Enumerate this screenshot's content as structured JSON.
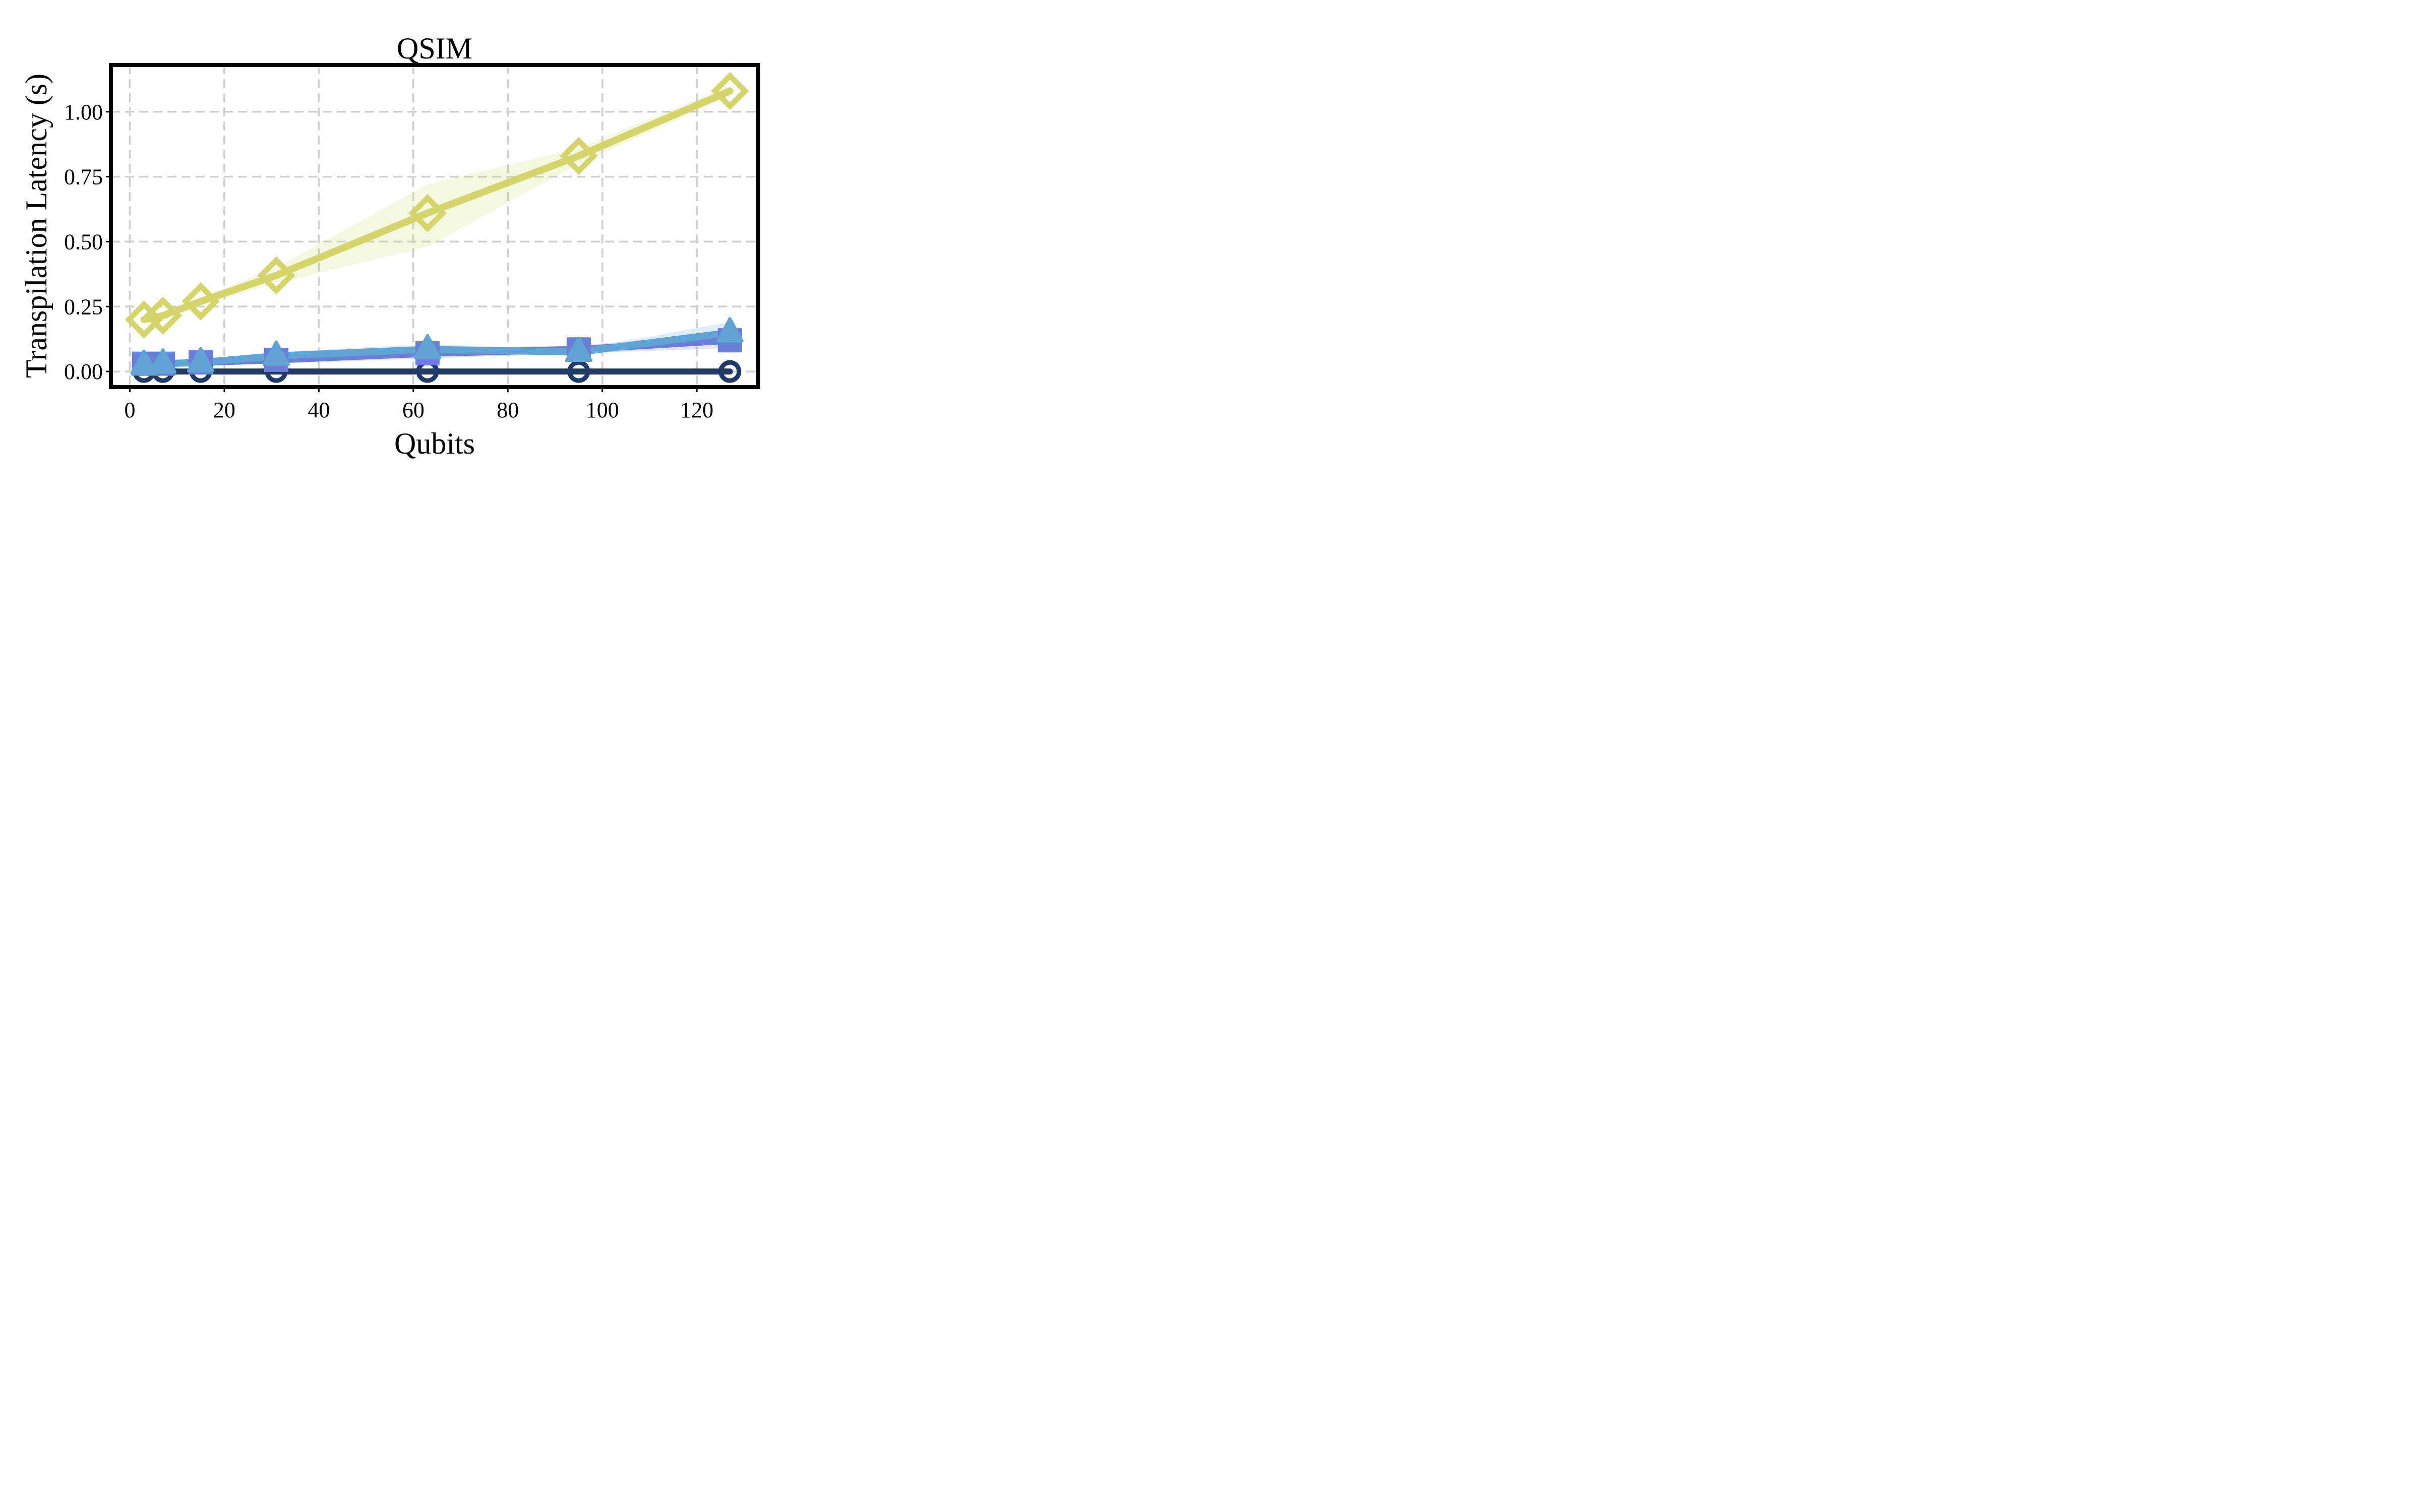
{
  "chart_data": {
    "type": "line",
    "title": "QSIM",
    "xlabel": "Qubits",
    "ylabel": "Transpilation Latency (s)",
    "xlim": [
      -4,
      133
    ],
    "ylim": [
      -0.06,
      1.18
    ],
    "xticks": [
      0,
      20,
      40,
      60,
      80,
      100,
      120
    ],
    "xtick_labels": [
      "0",
      "20",
      "40",
      "60",
      "80",
      "100",
      "120"
    ],
    "yticks": [
      0.0,
      0.25,
      0.5,
      0.75,
      1.0
    ],
    "ytick_labels": [
      "0.00",
      "0.25",
      "0.50",
      "0.75",
      "1.00"
    ],
    "grid": true,
    "x": [
      3,
      7,
      15,
      31,
      63,
      95,
      127
    ],
    "series": [
      {
        "color": "#d4d66b",
        "marker": "diamond",
        "values": [
          0.2,
          0.215,
          0.27,
          0.37,
          0.61,
          0.83,
          1.08
        ],
        "lower": [
          0.19,
          0.205,
          0.255,
          0.34,
          0.48,
          0.8,
          1.06
        ],
        "upper": [
          0.21,
          0.225,
          0.285,
          0.4,
          0.72,
          0.86,
          1.1
        ]
      },
      {
        "color": "#6b7fd9",
        "marker": "square",
        "values": [
          0.03,
          0.03,
          0.035,
          0.045,
          0.07,
          0.085,
          0.12
        ],
        "lower": [
          0.02,
          0.02,
          0.025,
          0.03,
          0.05,
          0.07,
          0.09
        ],
        "upper": [
          0.04,
          0.04,
          0.045,
          0.06,
          0.09,
          0.1,
          0.15
        ]
      },
      {
        "color": "#60a4d4",
        "marker": "triangle",
        "values": [
          0.025,
          0.03,
          0.035,
          0.06,
          0.085,
          0.075,
          0.15
        ],
        "lower": [
          0.015,
          0.02,
          0.025,
          0.045,
          0.065,
          0.065,
          0.11
        ],
        "upper": [
          0.035,
          0.04,
          0.045,
          0.075,
          0.105,
          0.085,
          0.19
        ]
      },
      {
        "color": "#1f3a68",
        "marker": "circle",
        "values": [
          0.0,
          0.0,
          0.0,
          0.0,
          0.0,
          0.0,
          0.0
        ],
        "lower": [
          0.0,
          0.0,
          0.0,
          0.0,
          0.0,
          0.0,
          0.0
        ],
        "upper": [
          0.0,
          0.0,
          0.0,
          0.0,
          0.0,
          0.0,
          0.0
        ]
      }
    ]
  }
}
